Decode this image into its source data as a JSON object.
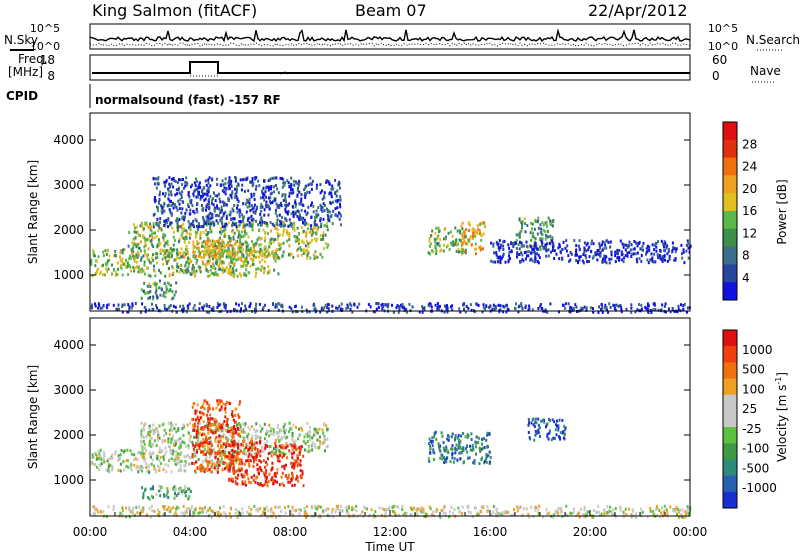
{
  "header": {
    "station": "King Salmon (fitACF)",
    "beam": "Beam 07",
    "date": "22/Apr/2012"
  },
  "strips": {
    "nsky_label": "N.Sky",
    "nsearch_label": "N.Search",
    "nsky_ticks": [
      "10^5",
      "10^0"
    ],
    "freq_label_1": "Freq.",
    "freq_label_2": "[MHz]",
    "freq_ticks": [
      "18",
      "8"
    ],
    "nave_label": "Nave",
    "nave_ticks": [
      "60",
      "0"
    ],
    "cpid_label": "CPID",
    "cpid_text": "normalsound (fast) -157 RF"
  },
  "chart_data": [
    {
      "type": "heatmap",
      "panel": "power",
      "ylabel": "Slant Range [km]",
      "ylim": [
        200,
        4600
      ],
      "yticks": [
        1000,
        2000,
        3000,
        4000
      ],
      "xlim": [
        "00:00",
        "24:00"
      ],
      "colorbar": {
        "label": "Power [dB]",
        "ticks": [
          4,
          8,
          12,
          16,
          20,
          24,
          28
        ],
        "range": [
          0,
          32
        ],
        "colors": [
          "#1212e0",
          "#28469e",
          "#3a6e8a",
          "#3f8f4c",
          "#5cb84a",
          "#e0c020",
          "#f0a020",
          "#f07010",
          "#e03010",
          "#e01010"
        ]
      },
      "regions": [
        {
          "t": [
            0.0,
            5.8
          ],
          "range": [
            1000,
            1600
          ],
          "level": 0.45
        },
        {
          "t": [
            1.5,
            9.5
          ],
          "range": [
            1400,
            2200
          ],
          "level": 0.45
        },
        {
          "t": [
            2.0,
            3.5
          ],
          "range": [
            500,
            900
          ],
          "level": 0.35
        },
        {
          "t": [
            5.5,
            7.5
          ],
          "range": [
            1000,
            1600
          ],
          "level": 0.5
        },
        {
          "t": [
            4.0,
            6.0
          ],
          "range": [
            1400,
            1800
          ],
          "level": 0.6
        },
        {
          "t": [
            2.5,
            10.0
          ],
          "range": [
            2100,
            3200
          ],
          "level": 0.15
        },
        {
          "t": [
            13.5,
            15.0
          ],
          "range": [
            1500,
            2100
          ],
          "level": 0.45
        },
        {
          "t": [
            14.8,
            15.8
          ],
          "range": [
            1500,
            2200
          ],
          "level": 0.6
        },
        {
          "t": [
            17.0,
            18.5
          ],
          "range": [
            1600,
            2300
          ],
          "level": 0.35
        },
        {
          "t": [
            16.0,
            24.0
          ],
          "range": [
            1300,
            1800
          ],
          "level": 0.08
        },
        {
          "t": [
            0.0,
            24.0
          ],
          "range": [
            200,
            400
          ],
          "level": 0.1
        }
      ]
    },
    {
      "type": "heatmap",
      "panel": "velocity",
      "ylabel": "Slant Range [km]",
      "xlabel": "Time UT",
      "ylim": [
        200,
        4600
      ],
      "yticks": [
        1000,
        2000,
        3000,
        4000
      ],
      "xlim": [
        "00:00",
        "24:00"
      ],
      "xticks": [
        "00:00",
        "04:00",
        "08:00",
        "12:00",
        "16:00",
        "20:00",
        "00:00"
      ],
      "colorbar": {
        "label": "Velocity [m s^-1]",
        "ticks": [
          "1000",
          "500",
          "100",
          "25",
          "-25",
          "-100",
          "-500",
          "-1000"
        ],
        "colors": [
          "#1a2fd0",
          "#2860b0",
          "#2e8a7a",
          "#3f9a45",
          "#5cc040",
          "#c8c8c8",
          "#c8c8c8",
          "#f0a020",
          "#f07010",
          "#f04010",
          "#e01010"
        ]
      },
      "regions": [
        {
          "t": [
            0.0,
            6.0
          ],
          "range": [
            1200,
            1700
          ],
          "level": 0.5
        },
        {
          "t": [
            2.0,
            9.5
          ],
          "range": [
            1600,
            2300
          ],
          "level": 0.5
        },
        {
          "t": [
            2.0,
            4.0
          ],
          "range": [
            600,
            900
          ],
          "level": 0.35
        },
        {
          "t": [
            4.0,
            6.0
          ],
          "range": [
            1200,
            2800
          ],
          "level": 0.85
        },
        {
          "t": [
            5.5,
            8.5
          ],
          "range": [
            900,
            1900
          ],
          "level": 0.9
        },
        {
          "t": [
            13.5,
            16.0
          ],
          "range": [
            1400,
            2100
          ],
          "level": 0.2
        },
        {
          "t": [
            17.5,
            19.0
          ],
          "range": [
            1900,
            2400
          ],
          "level": 0.1
        },
        {
          "t": [
            0.0,
            24.0
          ],
          "range": [
            200,
            450
          ],
          "level": 0.55
        }
      ]
    }
  ]
}
